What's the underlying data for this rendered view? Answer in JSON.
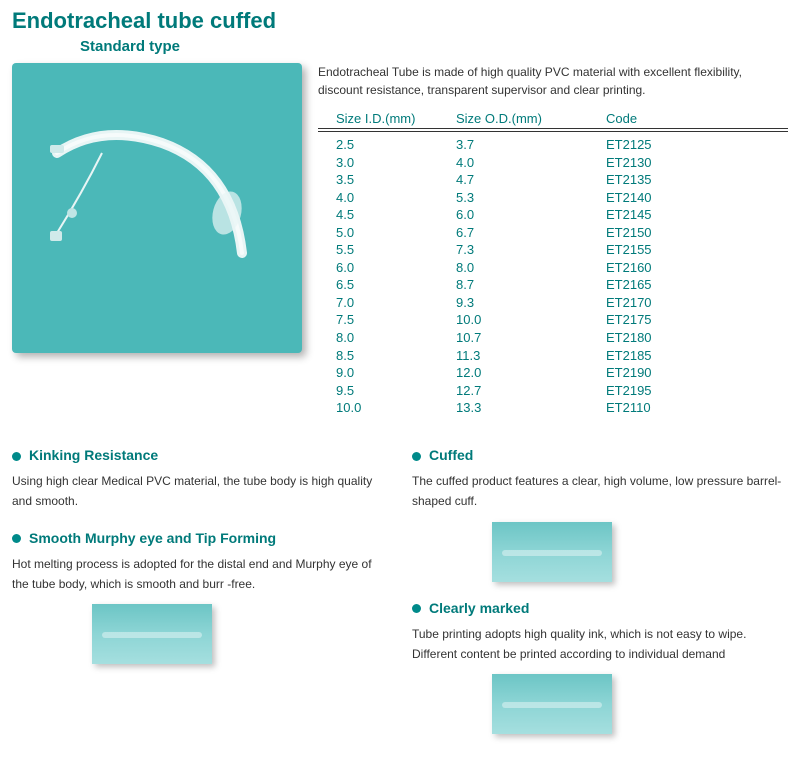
{
  "title": "Endotracheal tube cuffed",
  "subtitle": "Standard type",
  "description": "Endotracheal Tube is made of high quality PVC material with excellent flexibility, discount resistance, transparent supervisor and clear printing.",
  "colors": {
    "teal": "#007a7a",
    "image_bg": "#4bb8b8",
    "thumb_bg": "#6cc5c5",
    "text": "#333333",
    "bullet": "#008a8a"
  },
  "table": {
    "headers": [
      "Size I.D.(mm)",
      "Size O.D.(mm)",
      "Code"
    ],
    "rows": [
      [
        "2.5",
        "3.7",
        "ET2125"
      ],
      [
        "3.0",
        "4.0",
        "ET2130"
      ],
      [
        "3.5",
        "4.7",
        "ET2135"
      ],
      [
        "4.0",
        "5.3",
        "ET2140"
      ],
      [
        "4.5",
        "6.0",
        "ET2145"
      ],
      [
        "5.0",
        "6.7",
        "ET2150"
      ],
      [
        "5.5",
        "7.3",
        "ET2155"
      ],
      [
        "6.0",
        "8.0",
        "ET2160"
      ],
      [
        "6.5",
        "8.7",
        "ET2165"
      ],
      [
        "7.0",
        "9.3",
        "ET2170"
      ],
      [
        "7.5",
        "10.0",
        "ET2175"
      ],
      [
        "8.0",
        "10.7",
        "ET2180"
      ],
      [
        "8.5",
        "11.3",
        "ET2185"
      ],
      [
        "9.0",
        "12.0",
        "ET2190"
      ],
      [
        "9.5",
        "12.7",
        "ET2195"
      ],
      [
        "10.0",
        "13.3",
        "ET2110"
      ]
    ]
  },
  "features_left": [
    {
      "title": "Kinking Resistance",
      "desc": "Using high clear Medical PVC material, the tube body is high quality and smooth.",
      "has_image": false
    },
    {
      "title": "Smooth Murphy eye and Tip Forming",
      "desc": "Hot melting process is adopted for the distal end and Murphy eye of the tube body, which is smooth and burr -free.",
      "has_image": true
    }
  ],
  "features_right": [
    {
      "title": "Cuffed",
      "desc": "The cuffed product features a clear, high volume, low pressure barrel-shaped cuff.",
      "has_image": true
    },
    {
      "title": "Clearly marked",
      "desc": "Tube printing adopts high quality ink, which is not easy to wipe. Different content be printed according to individual demand",
      "has_image": true
    }
  ]
}
